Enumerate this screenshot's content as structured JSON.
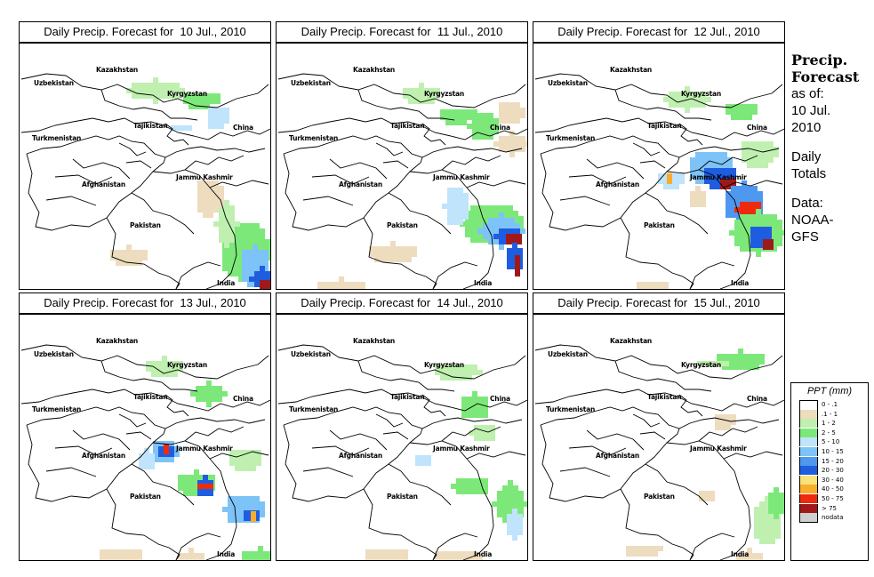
{
  "panels": [
    {
      "title": "Daily Precip. Forecast for  10 Jul., 2010",
      "precip_level": "heavy-east-india"
    },
    {
      "title": "Daily Precip. Forecast for  11 Jul., 2010",
      "precip_level": "heavy-jammu-east"
    },
    {
      "title": "Daily Precip. Forecast for  12 Jul., 2010",
      "precip_level": "heavy-jammu-kashmir"
    },
    {
      "title": "Daily Precip. Forecast for  13 Jul., 2010",
      "precip_level": "heavy-afghan-pakistan"
    },
    {
      "title": "Daily Precip. Forecast for  14 Jul., 2010",
      "precip_level": "light"
    },
    {
      "title": "Daily Precip. Forecast for  15 Jul., 2010",
      "precip_level": "very-light"
    }
  ],
  "map_labels": {
    "uzbekistan": "Uzbekistan",
    "kazakhstan": "Kazakhstan",
    "kyrgyzstan": "Kyrgyzstan",
    "tajikistan": "Tajikistan",
    "china": "China",
    "turkmenistan": "Turkmenistan",
    "afghanistan": "Afghanistan",
    "jammu_kashmir": "Jammu Kashmir",
    "pakistan": "Pakistan",
    "india": "India"
  },
  "side_info": {
    "heading_line1": "Precip.",
    "heading_line2": "Forecast",
    "asof_line1": "as of:",
    "asof_line2": "10 Jul.",
    "asof_line3": "2010",
    "totals_line1": "Daily",
    "totals_line2": "Totals",
    "data_line1": "Data:",
    "data_line2": "NOAA-",
    "data_line3": "GFS"
  },
  "legend": {
    "title": "PPT (mm)",
    "items": [
      {
        "label": "0 - .1",
        "color": "#ffffff"
      },
      {
        "label": ".1 - 1",
        "color": "#eedcbf"
      },
      {
        "label": "1 - 2",
        "color": "#bff0b0"
      },
      {
        "label": "2 - 5",
        "color": "#7de87a"
      },
      {
        "label": "5 - 10",
        "color": "#bfe4fb"
      },
      {
        "label": "10 - 15",
        "color": "#7ec3f7"
      },
      {
        "label": "15 - 20",
        "color": "#4f98f0"
      },
      {
        "label": "20 - 30",
        "color": "#1f5de0"
      },
      {
        "label": "30 - 40",
        "color": "#f9e27a"
      },
      {
        "label": "40 - 50",
        "color": "#f9ad2c"
      },
      {
        "label": "50 - 75",
        "color": "#ee2a0e"
      },
      {
        "label": "> 75",
        "color": "#a0191a"
      },
      {
        "label": "nodata",
        "color": "#cfcfcf"
      }
    ]
  }
}
